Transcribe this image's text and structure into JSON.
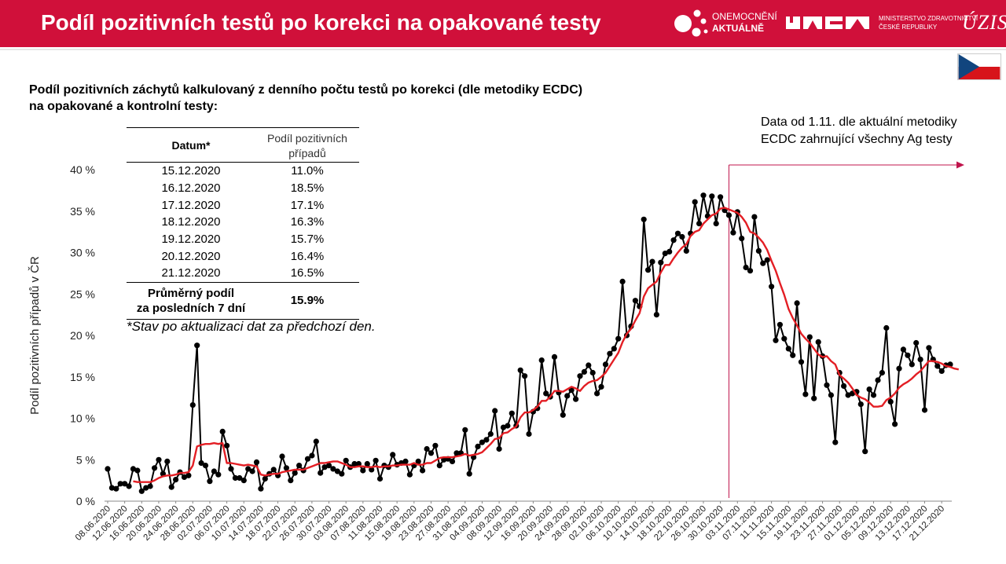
{
  "header": {
    "title": "Podíl pozitivních testů po korekci na opakované testy",
    "logo1_line1": "ONEMOCNĚNÍ",
    "logo1_line2": "AKTUÁLNĚ",
    "logo2_line1": "MINISTERSTVO ZDRAVOTNICTVÍ",
    "logo2_line2": "ČESKÉ REPUBLIKY",
    "logo3": "ÚZIS"
  },
  "colors": {
    "header_bg": "#d0103a",
    "series_points": "#000000",
    "series_avg": "#e31e24",
    "marker_line": "#c0144c"
  },
  "subtitle": {
    "line1": "Podíl pozitivních záchytů kalkulovaný z denního počtu testů po korekci (dle metodiky ECDC)",
    "line2": "na opakované a kontrolní testy:"
  },
  "note": {
    "line1": "Data od 1.11. dle aktuální metodiky",
    "line2": "ECDC zahrnující všechny Ag testy"
  },
  "table": {
    "col1": "Datum*",
    "col2_line1": "Podíl pozitivních",
    "col2_line2": "případů",
    "rows": [
      {
        "date": "15.12.2020",
        "value": "11.0%"
      },
      {
        "date": "16.12.2020",
        "value": "18.5%"
      },
      {
        "date": "17.12.2020",
        "value": "17.1%"
      },
      {
        "date": "18.12.2020",
        "value": "16.3%"
      },
      {
        "date": "19.12.2020",
        "value": "15.7%"
      },
      {
        "date": "20.12.2020",
        "value": "16.4%"
      },
      {
        "date": "21.12.2020",
        "value": "16.5%"
      }
    ],
    "footer_line1": "Průměrný podíl",
    "footer_line2": "za posledních 7 dní",
    "footer_value": "15.9%",
    "footnote": "*Stav po aktualizaci dat za předchozí den."
  },
  "chart_data": {
    "type": "line",
    "ylabel": "Podíl pozitivních případů v ČR",
    "ylim": [
      0,
      40
    ],
    "yticks": [
      0,
      5,
      10,
      15,
      20,
      25,
      30,
      35,
      40
    ],
    "ytick_labels": [
      "0 %",
      "5 %",
      "10 %",
      "15 %",
      "20 %",
      "25 %",
      "30 %",
      "35 %",
      "40 %"
    ],
    "x_start": "08.06.2020",
    "x_end": "21.12.2020",
    "x_tick_labels": [
      "08.06.2020",
      "12.06.2020",
      "16.06.2020",
      "20.06.2020",
      "24.06.2020",
      "28.06.2020",
      "02.07.2020",
      "06.07.2020",
      "10.07.2020",
      "14.07.2020",
      "18.07.2020",
      "22.07.2020",
      "26.07.2020",
      "30.07.2020",
      "03.08.2020",
      "07.08.2020",
      "11.08.2020",
      "15.08.2020",
      "19.08.2020",
      "23.08.2020",
      "27.08.2020",
      "31.08.2020",
      "04.09.2020",
      "08.09.2020",
      "12.09.2020",
      "16.09.2020",
      "20.09.2020",
      "24.09.2020",
      "28.09.2020",
      "02.10.2020",
      "06.10.2020",
      "10.10.2020",
      "14.10.2020",
      "18.10.2020",
      "22.10.2020",
      "26.10.2020",
      "30.10.2020",
      "03.11.2020",
      "07.11.2020",
      "11.11.2020",
      "15.11.2020",
      "19.11.2020",
      "23.11.2020",
      "27.11.2020",
      "01.12.2020",
      "05.12.2020",
      "09.12.2020",
      "13.12.2020",
      "17.12.2020",
      "21.12.2020"
    ],
    "marker_date": "01.11.2020",
    "grid": false,
    "series": [
      {
        "values": [
          3.9,
          1.6,
          1.5,
          2.1,
          2.1,
          1.8,
          3.9,
          3.7,
          1.2,
          1.6,
          1.8,
          4.0,
          5.0,
          3.3,
          4.8,
          1.7,
          2.6,
          3.5,
          2.9,
          3.1,
          11.6,
          18.8,
          4.6,
          4.3,
          2.4,
          3.6,
          3.2,
          8.4,
          6.7,
          3.9,
          2.8,
          2.8,
          2.5,
          3.9,
          3.6,
          4.7,
          1.5,
          2.7,
          3.3,
          3.8,
          3.1,
          5.4,
          4.0,
          2.5,
          3.4,
          4.3,
          3.7,
          5.1,
          5.5,
          7.2,
          3.4,
          4.1,
          4.3,
          3.9,
          3.6,
          3.3,
          4.9,
          4.1,
          4.5,
          4.5,
          3.7,
          4.5,
          3.8,
          4.9,
          2.7,
          4.3,
          4.1,
          5.6,
          4.4,
          4.6,
          4.8,
          3.2,
          4.3,
          4.8,
          3.7,
          6.3,
          5.8,
          6.7,
          4.3,
          5.0,
          5.1,
          4.8,
          5.8,
          5.8,
          8.6,
          3.3,
          5.3,
          6.6,
          7.1,
          7.4,
          8.1,
          10.9,
          6.3,
          8.9,
          9.1,
          10.6,
          9.1,
          15.8,
          15.1,
          8.1,
          10.8,
          11.2,
          17.0,
          13.0,
          12.6,
          17.4,
          13.1,
          10.4,
          12.7,
          13.4,
          12.3,
          15.1,
          15.6,
          16.4,
          15.5,
          13.0,
          13.8,
          16.5,
          17.8,
          18.4,
          19.6,
          26.5,
          20.0,
          21.1,
          24.2,
          23.5,
          34.0,
          27.9,
          28.9,
          22.5,
          28.8,
          29.9,
          30.1,
          31.5,
          32.3,
          31.9,
          30.2,
          32.3,
          36.1,
          33.5,
          36.9,
          34.4,
          36.8,
          33.5,
          36.7,
          35.1,
          34.5,
          32.4,
          34.9,
          31.7,
          28.2,
          27.8,
          34.3,
          30.2,
          28.7,
          29.1,
          25.9,
          19.4,
          21.3,
          19.6,
          18.4,
          17.6,
          23.9,
          16.8,
          12.9,
          19.8,
          12.4,
          19.2,
          17.5,
          14.0,
          12.8,
          7.1,
          15.5,
          13.9,
          12.8,
          13.0,
          13.2,
          11.7,
          6.0,
          13.5,
          12.8,
          14.6,
          15.5,
          20.9,
          12.0,
          9.3,
          16.0,
          18.3,
          17.6,
          16.5,
          19.1,
          17.1,
          11.0,
          18.5,
          17.1,
          16.3,
          15.7,
          16.4,
          16.5
        ],
        "avg": [
          null,
          null,
          null,
          null,
          null,
          null,
          2.4,
          2.3,
          2.3,
          2.3,
          2.3,
          2.5,
          2.8,
          3.0,
          3.1,
          3.1,
          3.2,
          3.4,
          3.4,
          3.5,
          4.3,
          6.6,
          6.8,
          6.9,
          6.9,
          7.0,
          6.9,
          7.0,
          4.6,
          4.6,
          4.5,
          4.4,
          4.3,
          4.4,
          4.3,
          4.2,
          3.2,
          3.1,
          3.2,
          3.3,
          3.3,
          3.5,
          3.6,
          3.7,
          3.8,
          3.8,
          3.8,
          4.0,
          4.2,
          4.4,
          4.6,
          4.6,
          4.7,
          4.8,
          4.8,
          4.6,
          4.4,
          4.1,
          4.1,
          4.2,
          4.2,
          4.1,
          4.1,
          4.2,
          4.1,
          4.2,
          4.2,
          4.3,
          4.3,
          4.4,
          4.4,
          4.4,
          4.6,
          4.4,
          4.4,
          4.6,
          4.6,
          4.9,
          5.2,
          5.3,
          5.3,
          5.3,
          5.4,
          5.5,
          5.7,
          5.5,
          5.6,
          5.7,
          5.9,
          6.4,
          6.9,
          7.5,
          7.6,
          8.2,
          8.3,
          8.7,
          9.0,
          10.1,
          10.7,
          10.7,
          11.0,
          11.4,
          12.1,
          12.1,
          12.6,
          13.3,
          13.3,
          13.2,
          13.5,
          13.8,
          13.6,
          13.3,
          13.9,
          14.3,
          14.5,
          14.6,
          15.0,
          15.5,
          16.3,
          17.1,
          17.9,
          19.2,
          20.2,
          20.8,
          21.8,
          22.7,
          24.7,
          25.7,
          26.1,
          26.5,
          27.6,
          28.5,
          28.5,
          29.3,
          30.0,
          30.6,
          31.0,
          32.0,
          32.5,
          32.7,
          33.5,
          34.0,
          34.5,
          34.7,
          35.3,
          35.4,
          35.2,
          35.0,
          34.8,
          34.3,
          33.6,
          32.5,
          32.3,
          31.8,
          31.2,
          30.3,
          29.0,
          27.8,
          26.3,
          24.9,
          23.2,
          22.1,
          21.2,
          20.2,
          19.6,
          19.1,
          18.4,
          17.7,
          17.4,
          17.5,
          16.9,
          16.5,
          15.2,
          14.8,
          14.3,
          13.6,
          12.8,
          12.5,
          12.3,
          11.9,
          11.4,
          11.4,
          11.5,
          12.2,
          12.5,
          13.0,
          13.7,
          14.1,
          14.4,
          14.8,
          15.3,
          15.7,
          16.3,
          16.9,
          16.9,
          16.8,
          16.6,
          16.3,
          16.2,
          16.0,
          15.9
        ]
      }
    ]
  }
}
